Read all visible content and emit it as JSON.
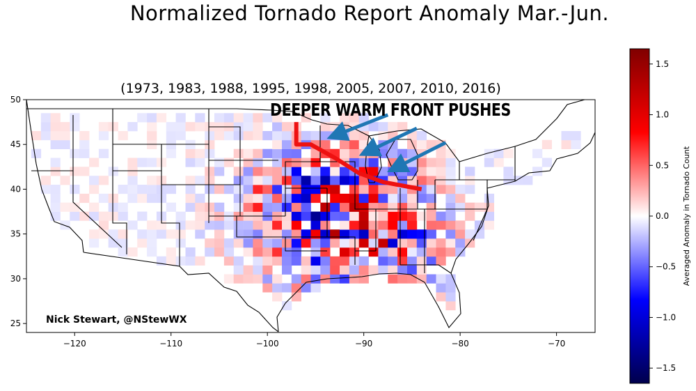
{
  "chart_data": {
    "type": "heatmap",
    "title": "Normalized Tornado Report Anomaly Mar.-Jun.",
    "subtitle": "(1973, 1983, 1988, 1995, 1998, 2005, 2007, 2010, 2016)",
    "xlim": [
      -125,
      -66
    ],
    "ylim": [
      24,
      50
    ],
    "x_ticks": [
      "−120",
      "−110",
      "−100",
      "−90",
      "−80",
      "−70"
    ],
    "x_tick_values": [
      -120,
      -110,
      -100,
      -90,
      -80,
      -70
    ],
    "y_ticks": [
      "25",
      "30",
      "35",
      "40",
      "45",
      "50"
    ],
    "y_tick_values": [
      25,
      30,
      35,
      40,
      45,
      50
    ],
    "colorbar": {
      "label": "Averaged Anomaly in Tornado Count",
      "range": [
        -1.65,
        1.65
      ],
      "ticks": [
        "1.5",
        "1.0",
        "0.5",
        "0.0",
        "−0.5",
        "−1.0",
        "−1.5"
      ],
      "tick_values": [
        1.5,
        1.0,
        0.5,
        0.0,
        -0.5,
        -1.0,
        -1.5
      ],
      "colormap": "seismic"
    },
    "annotation": "DEEPER WARM FRONT PUSHES",
    "credit": "Nick Stewart, @NStewWX",
    "warm_front_path": [
      [
        -97,
        47.5
      ],
      [
        -97,
        45
      ],
      [
        -95.5,
        45
      ],
      [
        -93,
        43.5
      ],
      [
        -90.5,
        41.8
      ],
      [
        -88,
        40.8
      ],
      [
        -84,
        40
      ]
    ],
    "arrows": [
      {
        "from": [
          -87.5,
          48.3
        ],
        "to": [
          -92.5,
          46.2
        ]
      },
      {
        "from": [
          -84.5,
          46.8
        ],
        "to": [
          -89.2,
          44.4
        ]
      },
      {
        "from": [
          -81.5,
          45.2
        ],
        "to": [
          -86.3,
          42.6
        ]
      }
    ],
    "warm_front_color": "#ee1111",
    "arrow_color": "#1f77b4"
  }
}
